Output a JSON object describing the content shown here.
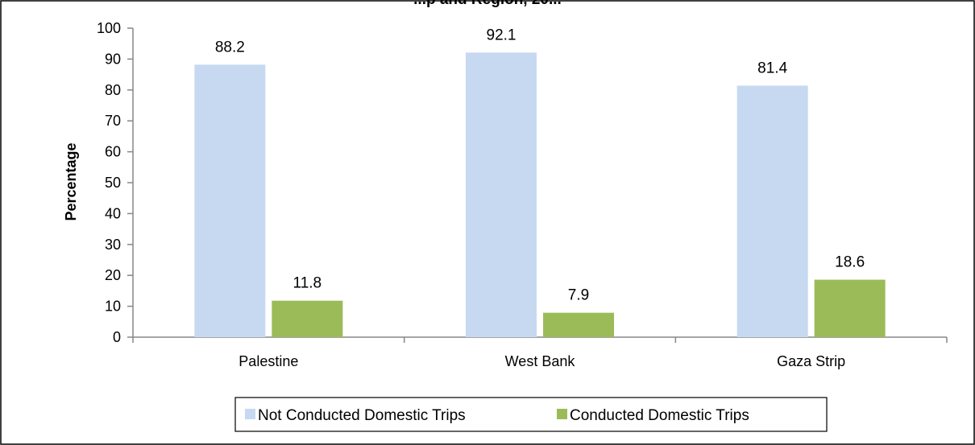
{
  "chart_data": {
    "type": "bar",
    "title": "...p and Region, 20...",
    "ylabel": "Percentage",
    "xlabel": "",
    "ylim": [
      0,
      100
    ],
    "yticks": [
      0,
      10,
      20,
      30,
      40,
      50,
      60,
      70,
      80,
      90,
      100
    ],
    "categories": [
      "Palestine",
      "West Bank",
      "Gaza Strip"
    ],
    "series": [
      {
        "name": "Not Conducted Domestic Trips",
        "values": [
          88.2,
          92.1,
          81.4
        ],
        "labels": [
          "88.2",
          "92.1",
          "81.4"
        ],
        "color": "#c6d9f1"
      },
      {
        "name": "Conducted Domestic Trips",
        "values": [
          11.8,
          7.9,
          18.6
        ],
        "labels": [
          "11.8",
          "7.9",
          "18.6"
        ],
        "color": "#9bbb59"
      }
    ],
    "grid": false,
    "legend_position": "bottom"
  }
}
